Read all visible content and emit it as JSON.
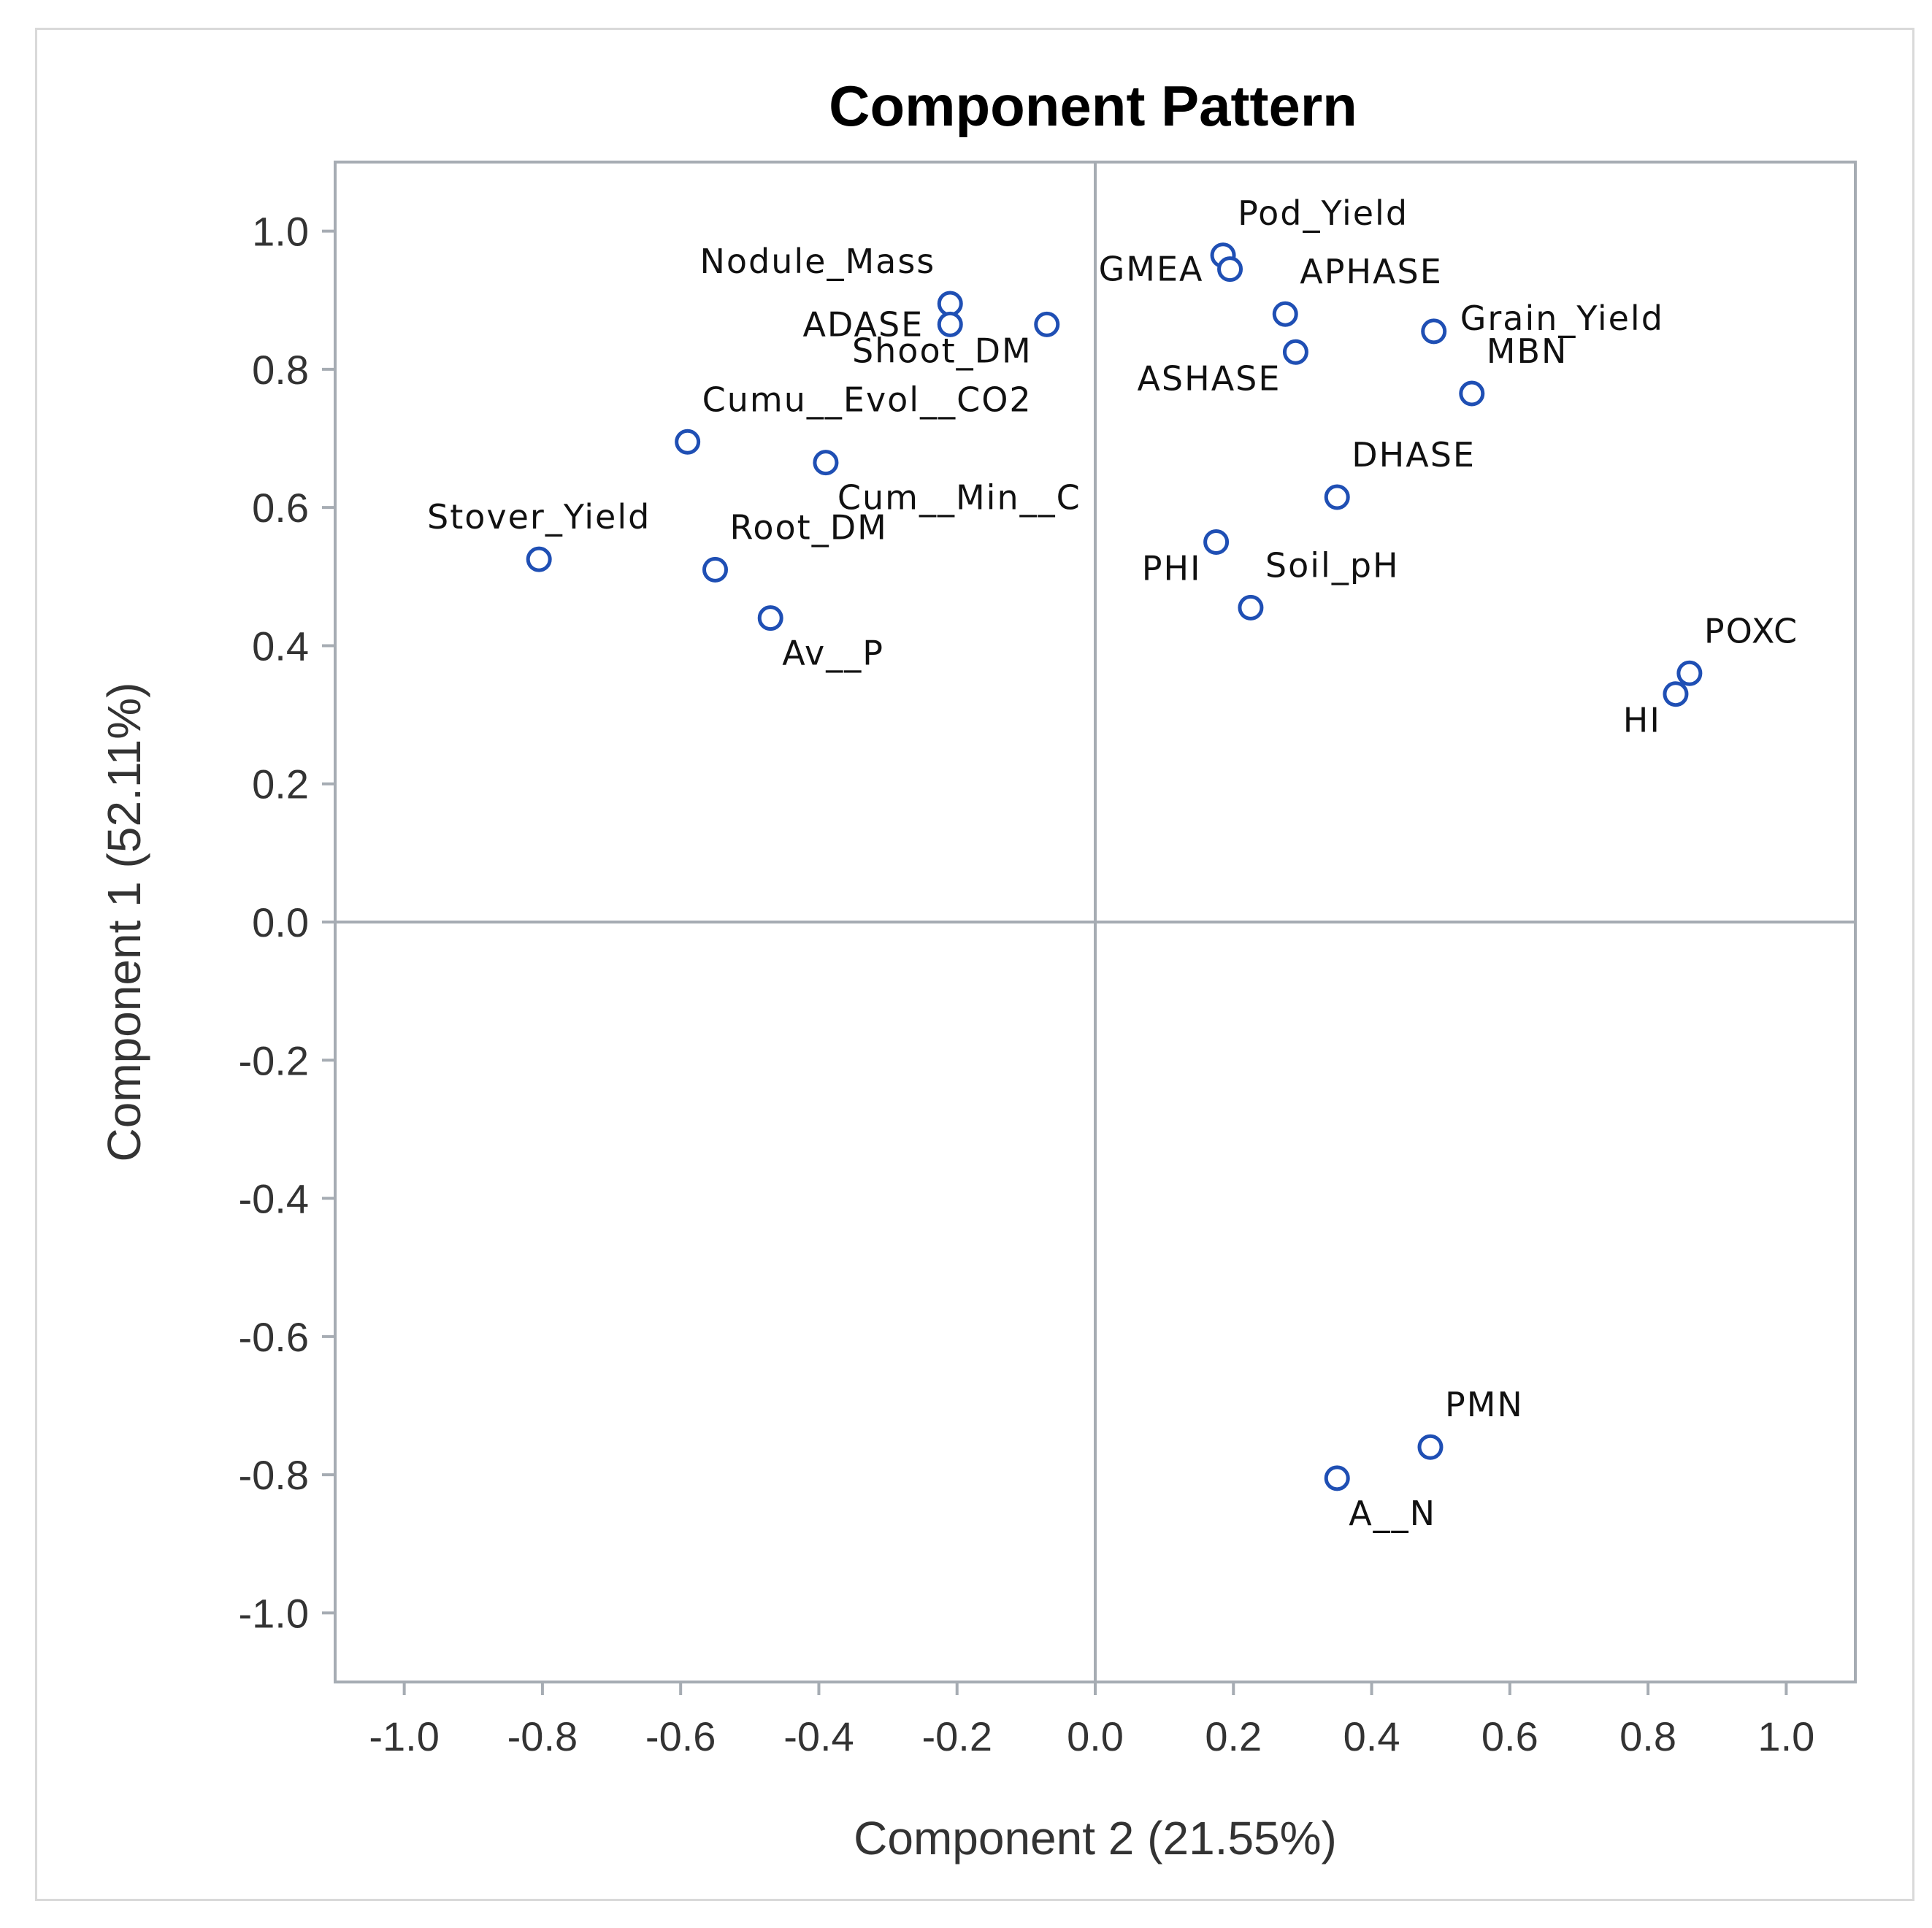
{
  "colors": {
    "marker": "#1f4fb4",
    "axis": "#a6acb3",
    "text": "#333333"
  },
  "chart_data": {
    "type": "scatter",
    "title": "Component Pattern",
    "xlabel": "Component 2 (21.55%)",
    "ylabel": "Component 1 (52.11%)",
    "xlim": [
      -1.1,
      1.1
    ],
    "ylim": [
      -1.1,
      1.1
    ],
    "xticks": [
      -1.0,
      -0.8,
      -0.6,
      -0.4,
      -0.2,
      0.0,
      0.2,
      0.4,
      0.6,
      0.8,
      1.0
    ],
    "yticks": [
      -1.0,
      -0.8,
      -0.6,
      -0.4,
      -0.2,
      0.0,
      0.2,
      0.4,
      0.6,
      0.8,
      1.0
    ],
    "xtick_labels": [
      "-1.0",
      "-0.8",
      "-0.6",
      "-0.4",
      "-0.2",
      "0.0",
      "0.2",
      "0.4",
      "0.6",
      "0.8",
      "1.0"
    ],
    "ytick_labels": [
      "-1.0",
      "-0.8",
      "-0.6",
      "-0.4",
      "-0.2",
      "0.0",
      "0.2",
      "0.4",
      "0.6",
      "0.8",
      "1.0"
    ],
    "reference_lines": {
      "x": 0.0,
      "y": 0.0
    },
    "points": [
      {
        "label": "Pod_Yield",
        "x": 0.185,
        "y": 0.965,
        "label_pos": "above-right"
      },
      {
        "label": "GMEA",
        "x": 0.195,
        "y": 0.945,
        "label_pos": "left"
      },
      {
        "label": "Nodule_Mass",
        "x": -0.21,
        "y": 0.895,
        "label_pos": "above-left"
      },
      {
        "label": "ADASE",
        "x": -0.21,
        "y": 0.865,
        "label_pos": "left"
      },
      {
        "label": "Shoot_DM",
        "x": -0.07,
        "y": 0.865,
        "label_pos": "below-left"
      },
      {
        "label": "APHASE",
        "x": 0.275,
        "y": 0.88,
        "label_pos": "above-right"
      },
      {
        "label": "Grain_Yield",
        "x": 0.49,
        "y": 0.855,
        "label_pos": "right"
      },
      {
        "label": "ASHASE",
        "x": 0.29,
        "y": 0.825,
        "label_pos": "below-left"
      },
      {
        "label": "MBN",
        "x": 0.545,
        "y": 0.765,
        "label_pos": "above-right"
      },
      {
        "label": "Cumu__Evol__CO2",
        "x": -0.59,
        "y": 0.695,
        "label_pos": "above-right"
      },
      {
        "label": "Cum__Min__C",
        "x": -0.39,
        "y": 0.665,
        "label_pos": "below-right"
      },
      {
        "label": "DHASE",
        "x": 0.35,
        "y": 0.615,
        "label_pos": "above-right"
      },
      {
        "label": "PHI",
        "x": 0.175,
        "y": 0.55,
        "label_pos": "below-left"
      },
      {
        "label": "Soil_pH",
        "x": 0.225,
        "y": 0.455,
        "label_pos": "above-right"
      },
      {
        "label": "Stover_Yield",
        "x": -0.805,
        "y": 0.525,
        "label_pos": "above"
      },
      {
        "label": "Root_DM",
        "x": -0.55,
        "y": 0.51,
        "label_pos": "above-right"
      },
      {
        "label": "Av__P",
        "x": -0.47,
        "y": 0.44,
        "label_pos": "below-right"
      },
      {
        "label": "POXC",
        "x": 0.86,
        "y": 0.36,
        "label_pos": "above-right"
      },
      {
        "label": "HI",
        "x": 0.84,
        "y": 0.33,
        "label_pos": "below-left"
      },
      {
        "label": "PMN",
        "x": 0.485,
        "y": -0.76,
        "label_pos": "above-right"
      },
      {
        "label": "A__N",
        "x": 0.35,
        "y": -0.805,
        "label_pos": "below-right"
      }
    ]
  }
}
